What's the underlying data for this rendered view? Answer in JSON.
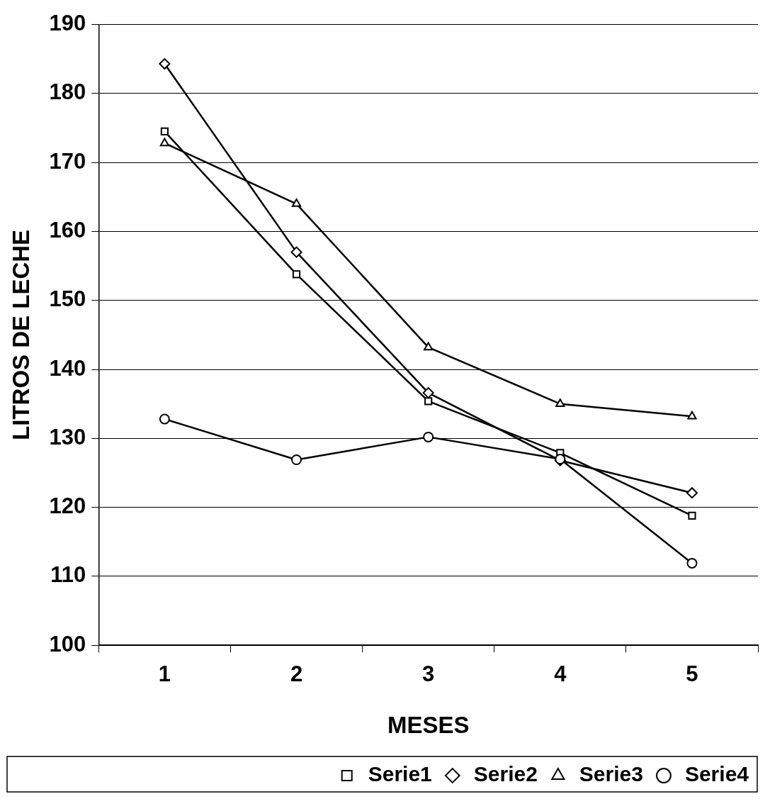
{
  "chart_data": {
    "type": "line",
    "xlabel": "MESES",
    "ylabel": "LITROS DE LECHE",
    "categories": [
      "1",
      "2",
      "3",
      "4",
      "5"
    ],
    "series": [
      {
        "name": "Serie1",
        "color": "#000000",
        "marker": "square",
        "values": [
          174.5,
          153.8,
          135.4,
          127.9,
          118.8
        ]
      },
      {
        "name": "Serie2",
        "color": "#000000",
        "marker": "diamond",
        "values": [
          184.3,
          157.0,
          136.6,
          126.8,
          122.1
        ]
      },
      {
        "name": "Serie3",
        "color": "#000000",
        "marker": "triangle",
        "values": [
          172.8,
          164.0,
          143.2,
          135.0,
          133.2
        ]
      },
      {
        "name": "Serie4",
        "color": "#000000",
        "marker": "circle",
        "values": [
          132.8,
          126.9,
          130.2,
          127.0,
          111.9
        ]
      }
    ],
    "ylim": [
      100,
      190
    ],
    "yticks": [
      100,
      110,
      120,
      130,
      140,
      150,
      160,
      170,
      180,
      190
    ],
    "grid": "y",
    "legend": "bottom",
    "line_style": "solid"
  }
}
